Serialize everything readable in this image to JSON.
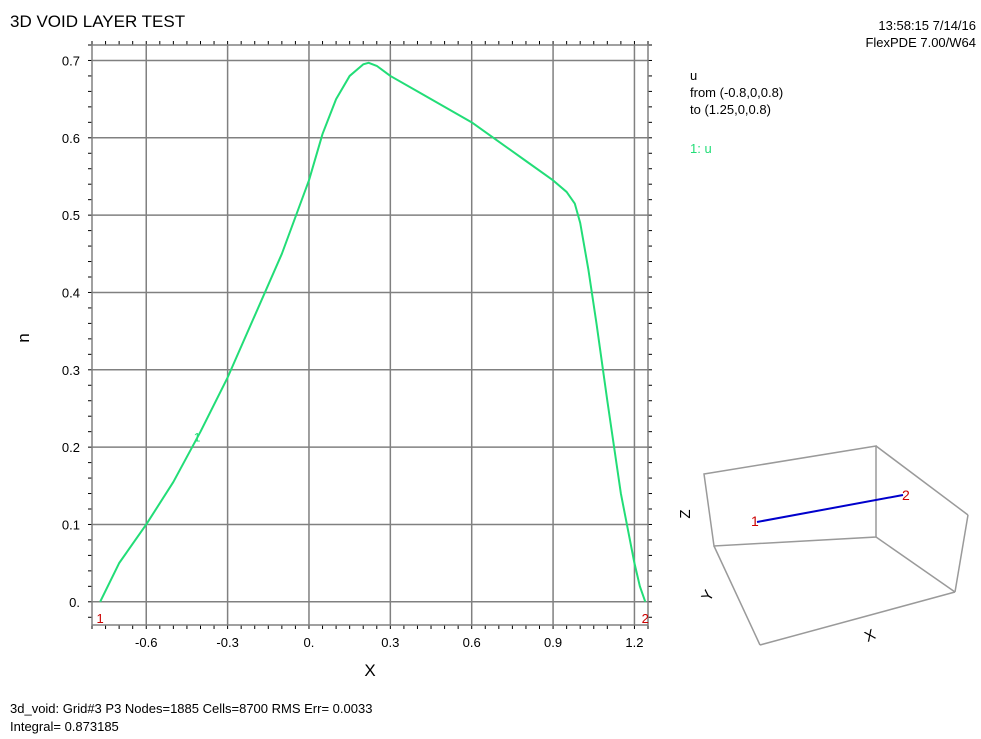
{
  "header": {
    "title": "3D VOID LAYER TEST",
    "timestamp": "13:58:15 7/14/16",
    "software": "FlexPDE 7.00/W64"
  },
  "legend": {
    "variable": "u",
    "from": "from (-0.8,0,0.8)",
    "to": "to (1.25,0,0.8)",
    "series_label": "1: u"
  },
  "footer": {
    "line1": "3d_void:  Grid#3  P3  Nodes=1885 Cells=8700 RMS Err= 0.0033",
    "line2": "Integral=  0.873185"
  },
  "inset": {
    "axis_z": "Z",
    "axis_y": "Y",
    "axis_x": "X",
    "start_label": "1",
    "end_label": "2",
    "line_color": "#0000cc",
    "marker_color": "#cc0000"
  },
  "colors": {
    "series": "#22dd77",
    "marker": "#cc0000",
    "grid": "#808080"
  },
  "chart_data": {
    "type": "line",
    "xlabel": "X",
    "ylabel": "u",
    "xlim": [
      -0.8,
      1.25
    ],
    "ylim": [
      -0.03,
      0.72
    ],
    "x_ticks": [
      -0.6,
      -0.3,
      0.0,
      0.3,
      0.6,
      0.9,
      1.2
    ],
    "x_tick_labels": [
      "-0.6",
      "-0.3",
      "0.",
      "0.3",
      "0.6",
      "0.9",
      "1.2"
    ],
    "y_ticks": [
      0.0,
      0.1,
      0.2,
      0.3,
      0.4,
      0.5,
      0.6,
      0.7
    ],
    "y_tick_labels": [
      "0.",
      "0.1",
      "0.2",
      "0.3",
      "0.4",
      "0.5",
      "0.6",
      "0.7"
    ],
    "grid": true,
    "series": [
      {
        "name": "u",
        "marker_label": "1",
        "marker_at_x": -0.41,
        "x": [
          -0.77,
          -0.7,
          -0.6,
          -0.5,
          -0.4,
          -0.3,
          -0.2,
          -0.1,
          0.0,
          0.05,
          0.1,
          0.15,
          0.2,
          0.22,
          0.25,
          0.3,
          0.4,
          0.5,
          0.6,
          0.7,
          0.8,
          0.9,
          0.95,
          0.98,
          1.0,
          1.03,
          1.06,
          1.1,
          1.15,
          1.2,
          1.22,
          1.24
        ],
        "values": [
          0.0,
          0.05,
          0.1,
          0.155,
          0.22,
          0.29,
          0.37,
          0.45,
          0.545,
          0.605,
          0.65,
          0.68,
          0.695,
          0.697,
          0.693,
          0.68,
          0.66,
          0.64,
          0.62,
          0.595,
          0.57,
          0.545,
          0.53,
          0.515,
          0.49,
          0.43,
          0.36,
          0.26,
          0.14,
          0.05,
          0.02,
          0.0
        ]
      }
    ],
    "endpoint_labels": [
      "1",
      "2"
    ]
  }
}
